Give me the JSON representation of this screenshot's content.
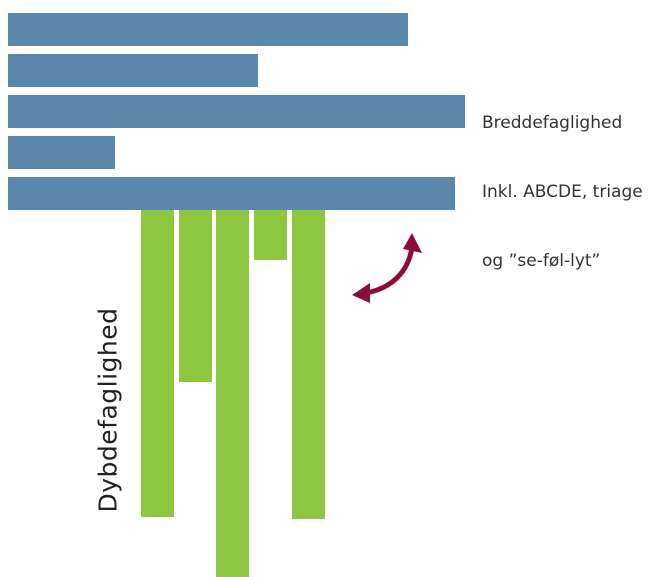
{
  "labels": {
    "breadth_line1": "Breddefaglighed",
    "breadth_line2": "Inkl. ABCDE, triage",
    "breadth_line3": "og ”se-føl-lyt”",
    "depth": "Dybdefaglighed"
  },
  "colors": {
    "breadth_bar": "#5b87ab",
    "depth_bar": "#8dc63f",
    "arrow": "#8b0e3a"
  },
  "icons": {
    "arrow": "double-headed-curved-arrow"
  }
}
